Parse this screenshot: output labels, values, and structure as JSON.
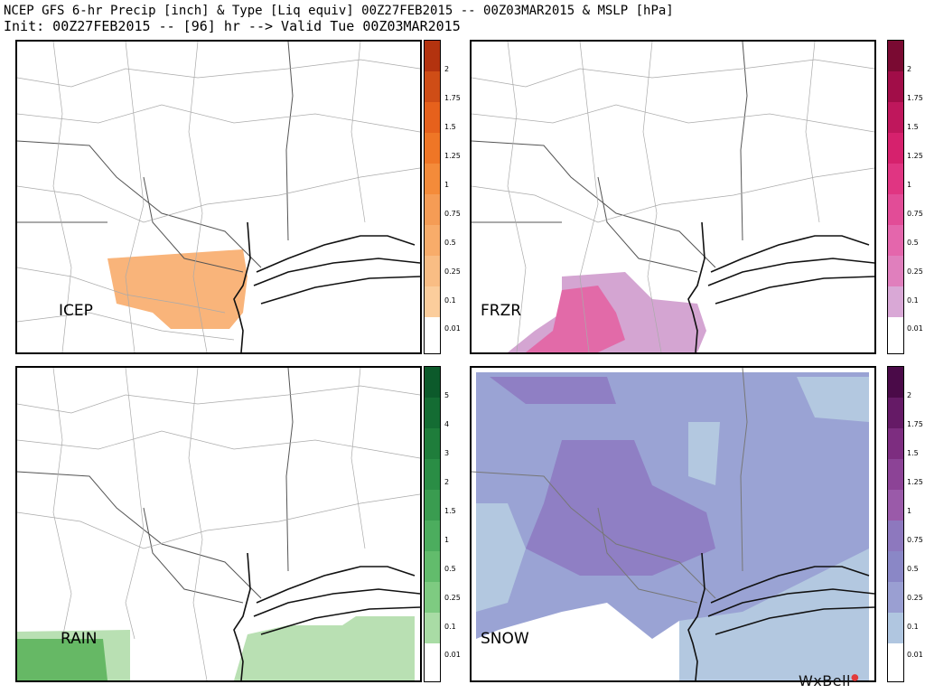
{
  "header": {
    "line1": "NCEP GFS 6-hr Precip [inch] & Type [Liq equiv] 00Z27FEB2015 -- 00Z03MAR2015 & MSLP [hPa]",
    "line2": "Init: 00Z27FEB2015 -- [96] hr --> Valid Tue 00Z03MAR2015"
  },
  "panels": {
    "icep": {
      "label": "ICEP"
    },
    "frzr": {
      "label": "FRZR"
    },
    "rain": {
      "label": "RAIN"
    },
    "snow": {
      "label": "SNOW"
    }
  },
  "colorbars": {
    "icep": {
      "ticks": [
        "2",
        "1.75",
        "1.5",
        "1.25",
        "1",
        "0.75",
        "0.5",
        "0.25",
        "0.1",
        "0.01"
      ],
      "colors": [
        "#b3330f",
        "#cf4d16",
        "#e6611c",
        "#ef7626",
        "#f48b3a",
        "#f59c55",
        "#f8ac6a",
        "#f9bd84",
        "#fbcd9c",
        "#ffffff"
      ]
    },
    "frzr": {
      "ticks": [
        "2",
        "1.75",
        "1.5",
        "1.25",
        "1",
        "0.75",
        "0.5",
        "0.25",
        "0.1",
        "0.01"
      ],
      "colors": [
        "#7a0a32",
        "#a10d48",
        "#bf175c",
        "#d6216d",
        "#e03582",
        "#e24c97",
        "#e466ac",
        "#e07fbd",
        "#d9a8d6",
        "#ffffff"
      ]
    },
    "rain": {
      "ticks": [
        "5",
        "4",
        "3",
        "2",
        "1.5",
        "1",
        "0.5",
        "0.25",
        "0.1",
        "0.01"
      ],
      "colors": [
        "#0c5a2b",
        "#146c33",
        "#1f7d3b",
        "#2a8d45",
        "#3a9c50",
        "#4cad5e",
        "#62bc6c",
        "#7ecb81",
        "#a9dca5",
        "#ffffff"
      ]
    },
    "snow": {
      "ticks": [
        "2",
        "1.75",
        "1.5",
        "1.25",
        "1",
        "0.75",
        "0.5",
        "0.25",
        "0.1",
        "0.01"
      ],
      "colors": [
        "#4a0a48",
        "#651a66",
        "#7d2d80",
        "#8c4396",
        "#9a5aa9",
        "#8d78be",
        "#8a87c6",
        "#9a9fd2",
        "#b0c6e0",
        "#ffffff"
      ]
    }
  },
  "precip_colors": {
    "icep": "#f9b47a",
    "frzr_light": "#d4a5d2",
    "frzr_heavy": "#e26aa8",
    "rain_light": "#b9e0b3",
    "rain_heavy": "#66b865",
    "snow_light": "#b3c8e0",
    "snow_mid": "#9aa3d4",
    "snow_heavy": "#8f7fc4"
  },
  "logo": {
    "text": "WxBell"
  }
}
